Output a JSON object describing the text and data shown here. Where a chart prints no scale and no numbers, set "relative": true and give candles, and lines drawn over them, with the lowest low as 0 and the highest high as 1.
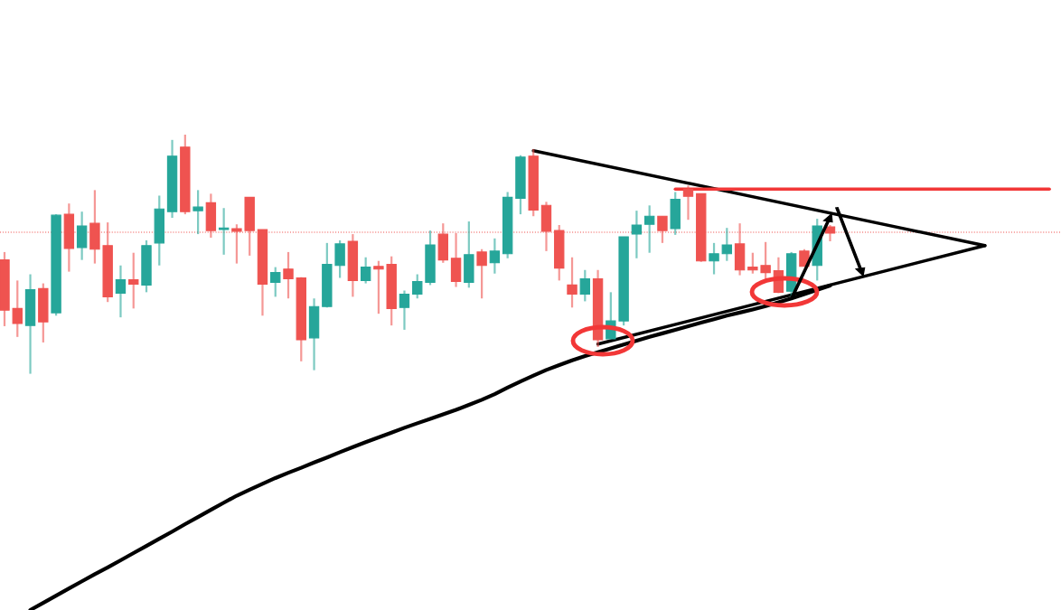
{
  "chart_data": {
    "type": "candlestick",
    "relative": true,
    "categories": [
      null,
      null,
      null,
      null,
      null,
      null,
      null,
      null,
      null,
      null,
      null,
      null,
      null,
      null,
      null,
      null,
      null,
      null,
      null,
      null,
      null,
      null,
      null,
      null,
      null,
      null,
      null,
      null,
      null,
      null,
      null,
      null,
      null,
      null,
      null,
      null,
      null,
      null,
      null,
      null,
      null,
      null,
      null,
      null,
      null,
      null,
      null,
      null,
      null,
      null,
      null,
      null,
      null,
      null,
      null,
      null,
      null,
      null,
      null,
      null,
      null,
      null,
      null,
      null,
      null,
      null,
      null,
      null,
      null,
      null,
      null,
      null,
      null,
      null,
      null,
      null,
      null,
      null,
      null,
      null,
      null,
      null
    ],
    "ohlc": [
      [
        0.476,
        0.509,
        0.199,
        0.266
      ],
      [
        0.273,
        0.39,
        0.154,
        0.21
      ],
      [
        0.202,
        0.416,
        0,
        0.352
      ],
      [
        0.356,
        0.378,
        0.131,
        0.217
      ],
      [
        0.255,
        0.667,
        0.243,
        0.663
      ],
      [
        0.667,
        0.712,
        0.427,
        0.524
      ],
      [
        0.528,
        0.678,
        0.476,
        0.618
      ],
      [
        0.629,
        0.768,
        0.461,
        0.521
      ],
      [
        0.536,
        0.633,
        0.3,
        0.322
      ],
      [
        0.337,
        0.453,
        0.236,
        0.393
      ],
      [
        0.393,
        0.506,
        0.273,
        0.375
      ],
      [
        0.371,
        0.558,
        0.341,
        0.536
      ],
      [
        0.547,
        0.745,
        0.453,
        0.689
      ],
      [
        0.678,
        0.978,
        0.652,
        0.91
      ],
      [
        0.948,
        1,
        0.667,
        0.678
      ],
      [
        0.682,
        0.768,
        0.584,
        0.697
      ],
      [
        0.715,
        0.753,
        0.569,
        0.599
      ],
      [
        0.603,
        0.693,
        0.498,
        0.61
      ],
      [
        0.607,
        0.625,
        0.461,
        0.596
      ],
      [
        0.738,
        0.738,
        0.494,
        0.599
      ],
      [
        0.603,
        0.603,
        0.243,
        0.375
      ],
      [
        0.382,
        0.446,
        0.322,
        0.423
      ],
      [
        0.438,
        0.509,
        0.315,
        0.397
      ],
      [
        0.401,
        0.404,
        0.052,
        0.142
      ],
      [
        0.15,
        0.315,
        0.015,
        0.281
      ],
      [
        0.281,
        0.547,
        0.277,
        0.457
      ],
      [
        0.453,
        0.558,
        0.401,
        0.543
      ],
      [
        0.554,
        0.584,
        0.322,
        0.39
      ],
      [
        0.39,
        0.487,
        0.378,
        0.446
      ],
      [
        0.449,
        0.472,
        0.251,
        0.438
      ],
      [
        0.457,
        0.491,
        0.202,
        0.273
      ],
      [
        0.277,
        0.348,
        0.184,
        0.333
      ],
      [
        0.333,
        0.416,
        0.315,
        0.386
      ],
      [
        0.382,
        0.599,
        0.371,
        0.539
      ],
      [
        0.584,
        0.629,
        0.464,
        0.476
      ],
      [
        0.483,
        0.588,
        0.363,
        0.386
      ],
      [
        0.382,
        0.637,
        0.36,
        0.498
      ],
      [
        0.509,
        0.521,
        0.315,
        0.453
      ],
      [
        0.464,
        0.566,
        0.419,
        0.513
      ],
      [
        0.502,
        0.76,
        0.483,
        0.738
      ],
      [
        0.734,
        0.914,
        0.667,
        0.906
      ],
      [
        0.91,
        0.94,
        0.659,
        0.685
      ],
      [
        0.704,
        0.719,
        0.513,
        0.596
      ],
      [
        0.599,
        0.622,
        0.39,
        0.442
      ],
      [
        0.371,
        0.487,
        0.277,
        0.333
      ],
      [
        0.333,
        0.434,
        0.303,
        0.397
      ],
      [
        0.397,
        0.434,
        0.112,
        0.142
      ],
      [
        0.146,
        0.341,
        0.146,
        0.221
      ],
      [
        0.221,
        0.573,
        0.202,
        0.573
      ],
      [
        0.584,
        0.682,
        0.483,
        0.622
      ],
      [
        0.625,
        0.704,
        0.506,
        0.659
      ],
      [
        0.659,
        0.659,
        0.547,
        0.599
      ],
      [
        0.607,
        0.76,
        0.581,
        0.73
      ],
      [
        0.772,
        0.787,
        0.644,
        0.742
      ],
      [
        0.753,
        0.753,
        0.468,
        0.472
      ],
      [
        0.472,
        0.547,
        0.416,
        0.502
      ],
      [
        0.502,
        0.61,
        0.472,
        0.539
      ],
      [
        0.543,
        0.629,
        0.412,
        0.434
      ],
      [
        0.446,
        0.506,
        0.419,
        0.434
      ],
      [
        0.453,
        0.551,
        0.397,
        0.423
      ],
      [
        0.431,
        0.487,
        0.337,
        0.341
      ],
      [
        0.345,
        0.509,
        0.322,
        0.502
      ],
      [
        0.513,
        0.521,
        0.449,
        0.449
      ],
      [
        0.453,
        0.648,
        0.39,
        0.618
      ],
      [
        0.614,
        0.622,
        0.554,
        0.588
      ],
      null,
      null,
      null,
      null,
      null,
      null,
      null,
      null,
      null,
      null,
      null,
      null,
      null,
      null,
      null,
      null,
      null
    ],
    "colors": [
      "#ef5350",
      "#ef5350",
      "#26a69a",
      "#ef5350",
      "#26a69a",
      "#ef5350",
      "#26a69a",
      "#ef5350",
      "#ef5350",
      "#26a69a",
      "#ef5350",
      "#26a69a",
      "#26a69a",
      "#26a69a",
      "#ef5350",
      "#26a69a",
      "#ef5350",
      "#26a69a",
      "#ef5350",
      "#ef5350",
      "#ef5350",
      "#26a69a",
      "#ef5350",
      "#ef5350",
      "#26a69a",
      "#26a69a",
      "#26a69a",
      "#ef5350",
      "#26a69a",
      "#ef5350",
      "#ef5350",
      "#26a69a",
      "#26a69a",
      "#26a69a",
      "#ef5350",
      "#ef5350",
      "#26a69a",
      "#ef5350",
      "#26a69a",
      "#26a69a",
      "#26a69a",
      "#ef5350",
      "#ef5350",
      "#ef5350",
      "#ef5350",
      "#26a69a",
      "#ef5350",
      "#26a69a",
      "#26a69a",
      "#26a69a",
      "#26a69a",
      "#ef5350",
      "#26a69a",
      "#ef5350",
      "#ef5350",
      "#26a69a",
      "#26a69a",
      "#ef5350",
      "#ef5350",
      "#ef5350",
      "#ef5350",
      "#26a69a",
      "#ef5350",
      "#26a69a",
      "#ef5350",
      null,
      null,
      null,
      null,
      null,
      null,
      null,
      null,
      null,
      null,
      null,
      null,
      null,
      null,
      null,
      null,
      null
    ],
    "series": [
      {
        "type": "line",
        "color": "#000000",
        "values": [
          null,
          null,
          -0.988,
          -0.958,
          -0.928,
          -0.898,
          -0.868,
          -0.838,
          -0.81,
          -0.78,
          -0.75,
          -0.72,
          -0.69,
          -0.66,
          -0.629,
          -0.599,
          -0.569,
          -0.539,
          -0.51,
          -0.485,
          -0.46,
          -0.436,
          -0.414,
          -0.393,
          -0.371,
          -0.35,
          -0.328,
          -0.307,
          -0.286,
          -0.266,
          -0.246,
          -0.226,
          -0.207,
          -0.189,
          -0.17,
          -0.151,
          -0.13,
          -0.109,
          -0.085,
          -0.058,
          -0.032,
          -0.008,
          0.016,
          0.036,
          0.056,
          0.074,
          0.09,
          0.106,
          0.122,
          0.138,
          0.154,
          0.169,
          0.184,
          0.199,
          0.214,
          0.228,
          0.243,
          0.256,
          0.269,
          0.283,
          0.299,
          0.315,
          0.333,
          0.351,
          0.369,
          null,
          null,
          null,
          null,
          null,
          null,
          null,
          null,
          null,
          null,
          null,
          null,
          null,
          null,
          null,
          null,
          null
        ]
      },
      {
        "type": "line",
        "color": "#000000",
        "values": [
          null,
          null,
          null,
          null,
          null,
          null,
          null,
          null,
          null,
          null,
          null,
          null,
          null,
          null,
          null,
          null,
          null,
          null,
          null,
          null,
          null,
          null,
          null,
          null,
          null,
          null,
          null,
          null,
          null,
          null,
          null,
          null,
          null,
          null,
          null,
          null,
          null,
          null,
          null,
          null,
          null,
          0.933,
          null,
          null,
          null,
          null,
          null,
          null,
          null,
          null,
          null,
          null,
          null,
          null,
          null,
          null,
          null,
          null,
          null,
          null,
          null,
          null,
          null,
          null,
          null,
          null,
          null,
          null,
          null,
          null,
          null,
          null,
          null,
          null,
          null,
          null,
          0.536,
          null,
          null,
          null,
          null,
          null
        ]
      },
      {
        "type": "line",
        "color": "#000000",
        "values": [
          null,
          null,
          null,
          null,
          null,
          null,
          null,
          null,
          null,
          null,
          null,
          null,
          null,
          null,
          null,
          null,
          null,
          null,
          null,
          null,
          null,
          null,
          null,
          null,
          null,
          null,
          null,
          null,
          null,
          null,
          null,
          null,
          null,
          null,
          null,
          null,
          null,
          null,
          null,
          null,
          null,
          null,
          null,
          null,
          null,
          null,
          0.124,
          null,
          null,
          null,
          null,
          null,
          null,
          null,
          null,
          null,
          null,
          null,
          null,
          null,
          null,
          null,
          null,
          null,
          null,
          null,
          null,
          null,
          null,
          null,
          null,
          null,
          null,
          null,
          null,
          null,
          0.536,
          null,
          null,
          null,
          null,
          null
        ]
      },
      {
        "type": "line",
        "color": "#f23737",
        "values": [
          null,
          null,
          null,
          null,
          null,
          null,
          null,
          null,
          null,
          null,
          null,
          null,
          null,
          null,
          null,
          null,
          null,
          null,
          null,
          null,
          null,
          null,
          null,
          null,
          null,
          null,
          null,
          null,
          null,
          null,
          null,
          null,
          null,
          null,
          null,
          null,
          null,
          null,
          null,
          null,
          null,
          null,
          null,
          null,
          null,
          null,
          null,
          null,
          null,
          null,
          null,
          null,
          0.772,
          null,
          null,
          null,
          null,
          null,
          null,
          null,
          null,
          null,
          null,
          null,
          null,
          null,
          null,
          null,
          null,
          null,
          null,
          null,
          null,
          null,
          null,
          null,
          null,
          null,
          null,
          null,
          null,
          0.772
        ]
      }
    ],
    "ref_lines": [
      {
        "axis": "y",
        "value": 0.592,
        "color": "#ef5350",
        "line_style": "dotted"
      }
    ]
  }
}
